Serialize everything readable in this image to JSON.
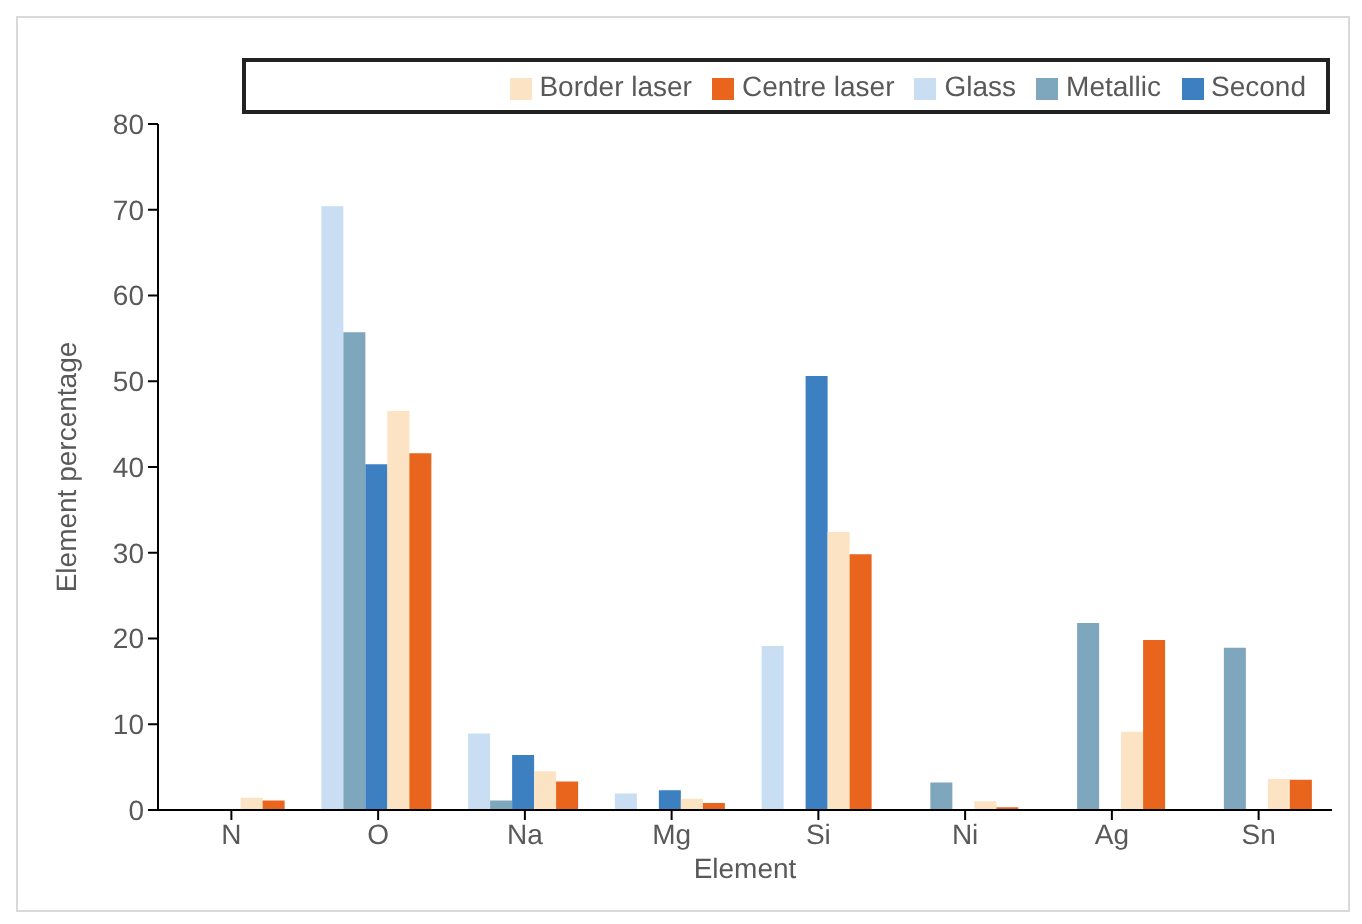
{
  "chart_data": {
    "type": "bar",
    "xlabel": "Element",
    "ylabel": "Element percentage",
    "categories": [
      "N",
      "O",
      "Na",
      "Mg",
      "Si",
      "Ni",
      "Ag",
      "Sn"
    ],
    "series": [
      {
        "name": "Glass",
        "color": "#c9ddf3",
        "values": [
          null,
          70.3,
          8.8,
          1.8,
          19,
          null,
          null,
          null
        ]
      },
      {
        "name": "Metallic",
        "color": "#7ea6bd",
        "values": [
          null,
          55.6,
          1,
          null,
          null,
          3.1,
          21.7,
          18.8
        ]
      },
      {
        "name": "Second",
        "color": "#3d80c2",
        "values": [
          null,
          40.2,
          6.3,
          2.2,
          50.5,
          null,
          null,
          null
        ]
      },
      {
        "name": "Border laser",
        "color": "#fbe3c3",
        "values": [
          1.3,
          46.4,
          4.4,
          1.2,
          32.3,
          0.9,
          9,
          3.5
        ]
      },
      {
        "name": "Centre laser",
        "color": "#e9641c",
        "values": [
          1,
          41.5,
          3.2,
          0.7,
          29.7,
          0.2,
          19.7,
          3.4
        ]
      }
    ],
    "ylim": [
      0,
      80
    ],
    "yticks": [
      0,
      10,
      20,
      30,
      40,
      50,
      60,
      70,
      80
    ],
    "grid": false,
    "legend": "top"
  }
}
